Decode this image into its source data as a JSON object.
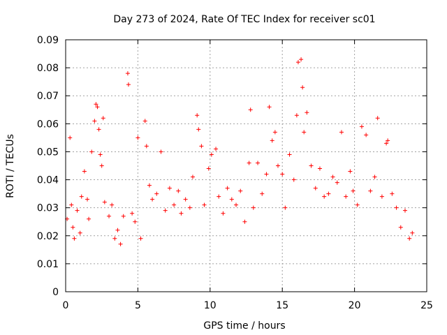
{
  "chart_data": {
    "type": "scatter",
    "title": "Day 273 of 2024, Rate Of TEC Index for receiver sc01",
    "xlabel": "GPS time / hours",
    "ylabel": "ROTI / TECUs",
    "xlim": [
      0,
      25
    ],
    "ylim": [
      0,
      0.09
    ],
    "xticks": [
      0,
      5,
      10,
      15,
      20,
      25
    ],
    "xtick_labels": [
      "0",
      "5",
      "10",
      "15",
      "20",
      "25"
    ],
    "yticks": [
      0,
      0.01,
      0.02,
      0.03,
      0.04,
      0.05,
      0.06,
      0.07,
      0.08,
      0.09
    ],
    "ytick_labels": [
      "0",
      "0.01",
      "0.02",
      "0.03",
      "0.04",
      "0.05",
      "0.06",
      "0.07",
      "0.08",
      "0.09"
    ],
    "grid": true,
    "marker": "+",
    "marker_color": "#ff0000",
    "series": [
      {
        "name": "ROTI",
        "x": [
          0.1,
          0.3,
          0.4,
          0.5,
          0.6,
          0.8,
          1.0,
          1.1,
          1.3,
          1.5,
          1.6,
          1.8,
          2.0,
          2.1,
          2.2,
          2.3,
          2.4,
          2.5,
          2.6,
          2.7,
          3.0,
          3.2,
          3.4,
          3.6,
          3.8,
          4.0,
          4.3,
          4.35,
          4.6,
          4.8,
          5.0,
          5.2,
          5.5,
          5.6,
          5.8,
          6.0,
          6.3,
          6.6,
          6.9,
          7.2,
          7.5,
          7.8,
          8.0,
          8.3,
          8.6,
          8.8,
          9.1,
          9.2,
          9.4,
          9.6,
          9.9,
          10.1,
          10.4,
          10.6,
          10.9,
          11.2,
          11.5,
          11.8,
          12.1,
          12.4,
          12.7,
          12.8,
          13.0,
          13.3,
          13.6,
          13.9,
          14.1,
          14.3,
          14.5,
          14.7,
          15.0,
          15.2,
          15.5,
          15.8,
          16.0,
          16.1,
          16.3,
          16.4,
          16.5,
          16.7,
          17.0,
          17.3,
          17.6,
          17.9,
          18.2,
          18.5,
          18.8,
          19.1,
          19.4,
          19.7,
          19.9,
          20.2,
          20.5,
          20.8,
          21.1,
          21.4,
          21.6,
          21.9,
          22.2,
          22.3,
          22.6,
          22.9,
          23.2,
          23.5,
          23.8,
          24.0
        ],
        "y": [
          0.026,
          0.055,
          0.031,
          0.023,
          0.019,
          0.029,
          0.021,
          0.034,
          0.043,
          0.033,
          0.026,
          0.05,
          0.061,
          0.067,
          0.066,
          0.058,
          0.049,
          0.045,
          0.062,
          0.032,
          0.027,
          0.031,
          0.019,
          0.022,
          0.017,
          0.027,
          0.078,
          0.074,
          0.028,
          0.025,
          0.055,
          0.019,
          0.061,
          0.052,
          0.038,
          0.033,
          0.035,
          0.05,
          0.029,
          0.037,
          0.031,
          0.036,
          0.028,
          0.033,
          0.03,
          0.041,
          0.063,
          0.058,
          0.052,
          0.031,
          0.044,
          0.049,
          0.051,
          0.034,
          0.028,
          0.037,
          0.033,
          0.031,
          0.036,
          0.025,
          0.046,
          0.065,
          0.03,
          0.046,
          0.035,
          0.042,
          0.066,
          0.054,
          0.057,
          0.045,
          0.042,
          0.03,
          0.049,
          0.04,
          0.063,
          0.082,
          0.083,
          0.073,
          0.057,
          0.064,
          0.045,
          0.037,
          0.044,
          0.034,
          0.035,
          0.041,
          0.039,
          0.057,
          0.034,
          0.043,
          0.036,
          0.031,
          0.059,
          0.056,
          0.036,
          0.041,
          0.062,
          0.034,
          0.053,
          0.054,
          0.035,
          0.03,
          0.023,
          0.029,
          0.019,
          0.021
        ]
      }
    ]
  }
}
